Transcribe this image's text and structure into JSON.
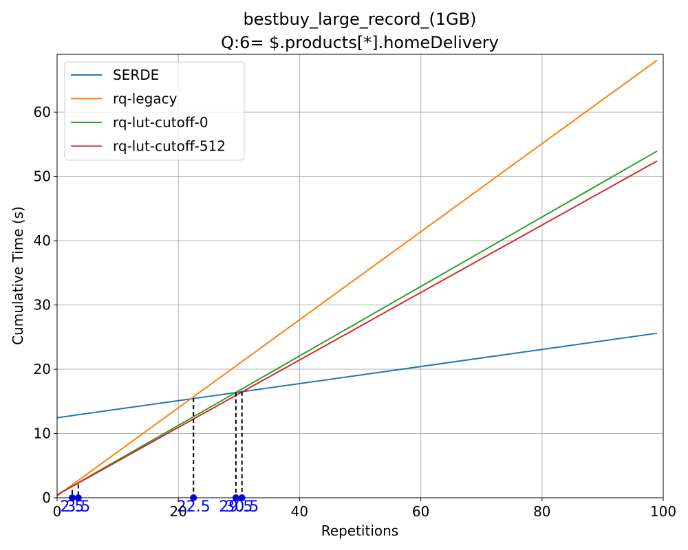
{
  "chart_data": {
    "type": "line",
    "title": "bestbuy_large_record_(1GB)",
    "subtitle": "Q:6= $.products[*].homeDelivery",
    "xlabel": "Repetitions",
    "ylabel": "Cumulative Time (s)",
    "xlim": [
      0,
      100
    ],
    "ylim": [
      0,
      69
    ],
    "xticks": [
      0,
      20,
      40,
      60,
      80,
      100
    ],
    "yticks": [
      0,
      10,
      20,
      30,
      40,
      50,
      60
    ],
    "grid": true,
    "legend_position": "top-left",
    "series": [
      {
        "name": "SERDE",
        "color": "#1f77b4",
        "x": [
          0,
          99
        ],
        "y": [
          12.45,
          25.6
        ]
      },
      {
        "name": "rq-legacy",
        "color": "#ff7f0e",
        "x": [
          0,
          99
        ],
        "y": [
          0.3,
          68.1
        ]
      },
      {
        "name": "rq-lut-cutoff-0",
        "color": "#2ca02c",
        "x": [
          0,
          99
        ],
        "y": [
          0.45,
          53.95
        ]
      },
      {
        "name": "rq-lut-cutoff-512",
        "color": "#d62728",
        "x": [
          0,
          99
        ],
        "y": [
          0.45,
          52.4
        ]
      }
    ],
    "crossovers": [
      {
        "x": 2.5,
        "y": 1.2,
        "label": "2.5"
      },
      {
        "x": 3.5,
        "y": 2.1,
        "label": "3.5"
      },
      {
        "x": 22.5,
        "y": 15.5,
        "label": "22.5"
      },
      {
        "x": 29.5,
        "y": 16.4,
        "label": "29.5"
      },
      {
        "x": 30.5,
        "y": 16.5,
        "label": "30.5"
      }
    ],
    "crossover_color": "#0000ff"
  }
}
